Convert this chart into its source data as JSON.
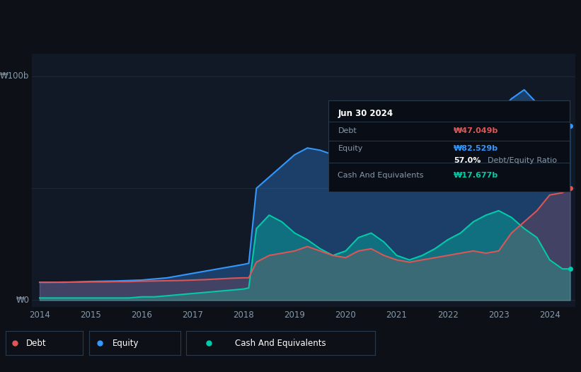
{
  "background_color": "#0d1117",
  "plot_bg_color": "#111927",
  "ylabel_100": "₩100b",
  "ylabel_0": "₩0",
  "x_ticks": [
    2014,
    2015,
    2016,
    2017,
    2018,
    2019,
    2020,
    2021,
    2022,
    2023,
    2024
  ],
  "debt_color": "#e05555",
  "equity_color": "#3399ff",
  "cash_color": "#00ccaa",
  "grid_color": "#1e2a38",
  "text_color": "#8899aa",
  "legend_bg": "#111927",
  "legend_border": "#2a3a4a",
  "tooltip_bg": "#090e16",
  "tooltip_border": "#2a3a4a",
  "years": [
    2014.0,
    2014.25,
    2014.5,
    2014.75,
    2015.0,
    2015.25,
    2015.5,
    2015.75,
    2016.0,
    2016.25,
    2016.5,
    2016.75,
    2017.0,
    2017.25,
    2017.5,
    2017.75,
    2018.0,
    2018.1,
    2018.25,
    2018.5,
    2018.75,
    2019.0,
    2019.25,
    2019.5,
    2019.75,
    2020.0,
    2020.25,
    2020.5,
    2020.75,
    2021.0,
    2021.25,
    2021.5,
    2021.75,
    2022.0,
    2022.25,
    2022.5,
    2022.75,
    2023.0,
    2023.25,
    2023.5,
    2023.75,
    2024.0,
    2024.25,
    2024.4
  ],
  "debt": [
    8.0,
    8.0,
    8.1,
    8.1,
    8.2,
    8.2,
    8.3,
    8.3,
    8.5,
    8.6,
    8.7,
    8.8,
    9.0,
    9.2,
    9.5,
    9.8,
    10.0,
    10.0,
    17.0,
    20.0,
    21.0,
    22.0,
    24.0,
    22.0,
    20.0,
    19.0,
    22.0,
    23.0,
    20.0,
    18.0,
    17.0,
    18.0,
    19.0,
    20.0,
    21.0,
    22.0,
    21.0,
    22.0,
    30.0,
    35.0,
    40.0,
    47.0,
    48.0,
    50.0
  ],
  "equity": [
    8.0,
    8.0,
    8.0,
    8.2,
    8.4,
    8.5,
    8.6,
    8.8,
    9.0,
    9.5,
    10.0,
    11.0,
    12.0,
    13.0,
    14.0,
    15.0,
    16.0,
    16.5,
    50.0,
    55.0,
    60.0,
    65.0,
    68.0,
    67.0,
    65.0,
    68.0,
    70.0,
    68.0,
    65.0,
    65.0,
    68.0,
    70.0,
    73.0,
    76.0,
    78.0,
    80.0,
    82.0,
    84.0,
    90.0,
    94.0,
    88.0,
    82.5,
    78.0,
    78.0
  ],
  "cash": [
    1.0,
    1.0,
    1.0,
    1.0,
    1.0,
    1.0,
    1.0,
    1.0,
    1.5,
    1.5,
    2.0,
    2.5,
    3.0,
    3.5,
    4.0,
    4.5,
    5.0,
    5.5,
    32.0,
    38.0,
    35.0,
    30.0,
    27.0,
    23.0,
    20.0,
    22.0,
    28.0,
    30.0,
    26.0,
    20.0,
    18.0,
    20.0,
    23.0,
    27.0,
    30.0,
    35.0,
    38.0,
    40.0,
    37.0,
    32.0,
    28.0,
    18.0,
    14.0,
    14.0
  ],
  "tooltip": {
    "date": "Jun 30 2024",
    "debt_label": "Debt",
    "debt_value": "₩47.049b",
    "equity_label": "Equity",
    "equity_value": "₩82.529b",
    "ratio_pct": "57.0%",
    "ratio_label": "Debt/Equity Ratio",
    "cash_label": "Cash And Equivalents",
    "cash_value": "₩17.677b"
  }
}
